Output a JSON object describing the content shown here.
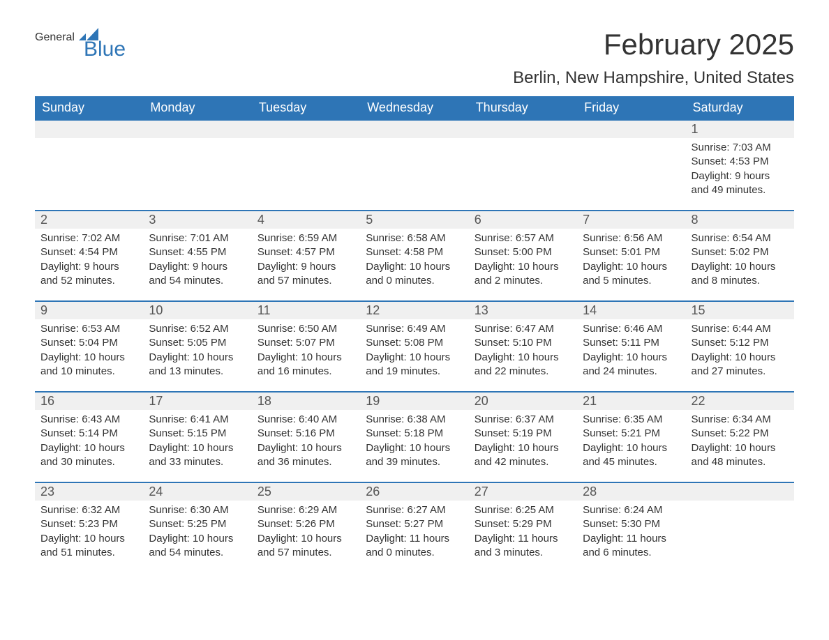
{
  "logo": {
    "general": "General",
    "blue": "Blue",
    "flag_color": "#2e75b6"
  },
  "title": "February 2025",
  "location": "Berlin, New Hampshire, United States",
  "colors": {
    "header_bg": "#2e75b6",
    "header_text": "#ffffff",
    "daynum_bg": "#f0f0f0",
    "row_border": "#2e75b6",
    "body_text": "#333333",
    "page_bg": "#ffffff"
  },
  "weekdays": [
    "Sunday",
    "Monday",
    "Tuesday",
    "Wednesday",
    "Thursday",
    "Friday",
    "Saturday"
  ],
  "weeks": [
    [
      null,
      null,
      null,
      null,
      null,
      null,
      {
        "d": "1",
        "sr": "7:03 AM",
        "ss": "4:53 PM",
        "dl": "9 hours and 49 minutes."
      }
    ],
    [
      {
        "d": "2",
        "sr": "7:02 AM",
        "ss": "4:54 PM",
        "dl": "9 hours and 52 minutes."
      },
      {
        "d": "3",
        "sr": "7:01 AM",
        "ss": "4:55 PM",
        "dl": "9 hours and 54 minutes."
      },
      {
        "d": "4",
        "sr": "6:59 AM",
        "ss": "4:57 PM",
        "dl": "9 hours and 57 minutes."
      },
      {
        "d": "5",
        "sr": "6:58 AM",
        "ss": "4:58 PM",
        "dl": "10 hours and 0 minutes."
      },
      {
        "d": "6",
        "sr": "6:57 AM",
        "ss": "5:00 PM",
        "dl": "10 hours and 2 minutes."
      },
      {
        "d": "7",
        "sr": "6:56 AM",
        "ss": "5:01 PM",
        "dl": "10 hours and 5 minutes."
      },
      {
        "d": "8",
        "sr": "6:54 AM",
        "ss": "5:02 PM",
        "dl": "10 hours and 8 minutes."
      }
    ],
    [
      {
        "d": "9",
        "sr": "6:53 AM",
        "ss": "5:04 PM",
        "dl": "10 hours and 10 minutes."
      },
      {
        "d": "10",
        "sr": "6:52 AM",
        "ss": "5:05 PM",
        "dl": "10 hours and 13 minutes."
      },
      {
        "d": "11",
        "sr": "6:50 AM",
        "ss": "5:07 PM",
        "dl": "10 hours and 16 minutes."
      },
      {
        "d": "12",
        "sr": "6:49 AM",
        "ss": "5:08 PM",
        "dl": "10 hours and 19 minutes."
      },
      {
        "d": "13",
        "sr": "6:47 AM",
        "ss": "5:10 PM",
        "dl": "10 hours and 22 minutes."
      },
      {
        "d": "14",
        "sr": "6:46 AM",
        "ss": "5:11 PM",
        "dl": "10 hours and 24 minutes."
      },
      {
        "d": "15",
        "sr": "6:44 AM",
        "ss": "5:12 PM",
        "dl": "10 hours and 27 minutes."
      }
    ],
    [
      {
        "d": "16",
        "sr": "6:43 AM",
        "ss": "5:14 PM",
        "dl": "10 hours and 30 minutes."
      },
      {
        "d": "17",
        "sr": "6:41 AM",
        "ss": "5:15 PM",
        "dl": "10 hours and 33 minutes."
      },
      {
        "d": "18",
        "sr": "6:40 AM",
        "ss": "5:16 PM",
        "dl": "10 hours and 36 minutes."
      },
      {
        "d": "19",
        "sr": "6:38 AM",
        "ss": "5:18 PM",
        "dl": "10 hours and 39 minutes."
      },
      {
        "d": "20",
        "sr": "6:37 AM",
        "ss": "5:19 PM",
        "dl": "10 hours and 42 minutes."
      },
      {
        "d": "21",
        "sr": "6:35 AM",
        "ss": "5:21 PM",
        "dl": "10 hours and 45 minutes."
      },
      {
        "d": "22",
        "sr": "6:34 AM",
        "ss": "5:22 PM",
        "dl": "10 hours and 48 minutes."
      }
    ],
    [
      {
        "d": "23",
        "sr": "6:32 AM",
        "ss": "5:23 PM",
        "dl": "10 hours and 51 minutes."
      },
      {
        "d": "24",
        "sr": "6:30 AM",
        "ss": "5:25 PM",
        "dl": "10 hours and 54 minutes."
      },
      {
        "d": "25",
        "sr": "6:29 AM",
        "ss": "5:26 PM",
        "dl": "10 hours and 57 minutes."
      },
      {
        "d": "26",
        "sr": "6:27 AM",
        "ss": "5:27 PM",
        "dl": "11 hours and 0 minutes."
      },
      {
        "d": "27",
        "sr": "6:25 AM",
        "ss": "5:29 PM",
        "dl": "11 hours and 3 minutes."
      },
      {
        "d": "28",
        "sr": "6:24 AM",
        "ss": "5:30 PM",
        "dl": "11 hours and 6 minutes."
      },
      null
    ]
  ],
  "labels": {
    "sunrise": "Sunrise: ",
    "sunset": "Sunset: ",
    "daylight": "Daylight: "
  }
}
